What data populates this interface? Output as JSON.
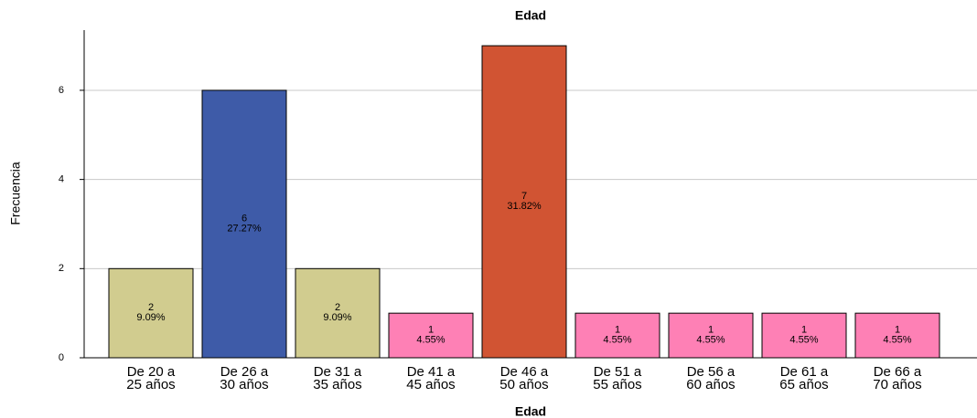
{
  "chart_data": {
    "type": "bar",
    "title": "Edad",
    "x_label": "Edad",
    "y_label": "Frecuencia",
    "categories": [
      [
        "De 20 a",
        "25 años"
      ],
      [
        "De 26 a",
        "30 años"
      ],
      [
        "De 31 a",
        "35 años"
      ],
      [
        "De 41 a",
        "45 años"
      ],
      [
        "De 46 a",
        "50 años"
      ],
      [
        "De 51 a",
        "55 años"
      ],
      [
        "De 56 a",
        "60 años"
      ],
      [
        "De 61 a",
        "65 años"
      ],
      [
        "De 66 a",
        "70 años"
      ]
    ],
    "values": [
      2,
      6,
      2,
      1,
      7,
      1,
      1,
      1,
      1
    ],
    "percent_labels": [
      "9.09%",
      "27.27%",
      "9.09%",
      "4.55%",
      "31.82%",
      "4.55%",
      "4.55%",
      "4.55%",
      "4.55%"
    ],
    "colors": [
      "#d1cc8f",
      "#3e5ba8",
      "#d1cc8f",
      "#fe80b5",
      "#d15433",
      "#fe80b5",
      "#fe80b5",
      "#fe80b5",
      "#fe80b5"
    ],
    "ylim": [
      0,
      7.35
    ],
    "yticks": [
      0,
      2,
      4,
      6
    ],
    "grid": true
  }
}
